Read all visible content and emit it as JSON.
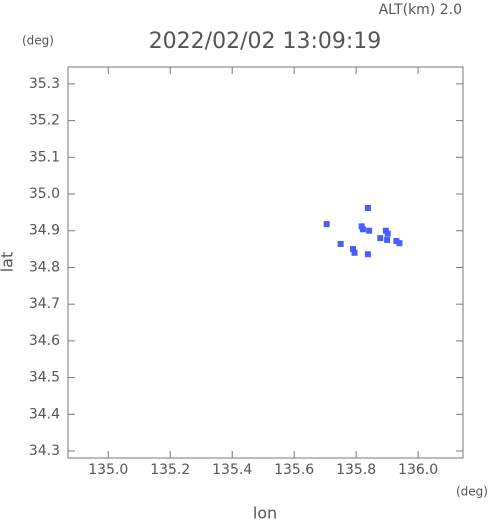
{
  "chart_data": {
    "type": "scatter",
    "title": "2022/02/02 13:09:19",
    "subtitle": "ALT(km) 2.0",
    "x_label": "lon",
    "y_label": "lat",
    "x_unit": "(deg)",
    "y_unit": "(deg)",
    "xlim": [
      134.87,
      136.145
    ],
    "ylim": [
      34.281,
      35.346
    ],
    "xticks": [
      {
        "value": 135.0,
        "label": "135.0"
      },
      135.2,
      135.4,
      135.6,
      135.8,
      {
        "value": 136.0,
        "label": "136.0"
      }
    ],
    "yticks": [
      34.3,
      34.4,
      34.5,
      34.6,
      34.7,
      34.8,
      34.9,
      {
        "value": 35.0,
        "label": "35.0"
      },
      35.1,
      35.2,
      35.3
    ],
    "series": [
      {
        "color": "#4a5cff",
        "x": [
          135.705,
          135.818,
          135.822,
          135.838,
          135.838,
          135.842,
          135.79,
          135.75,
          135.795,
          135.896,
          135.902,
          135.9,
          135.93,
          135.94,
          135.878
        ],
        "values": [
          34.918,
          34.912,
          34.904,
          34.962,
          34.836,
          34.9,
          34.85,
          34.864,
          34.84,
          34.9,
          34.892,
          34.875,
          34.872,
          34.866,
          34.88
        ]
      }
    ]
  }
}
